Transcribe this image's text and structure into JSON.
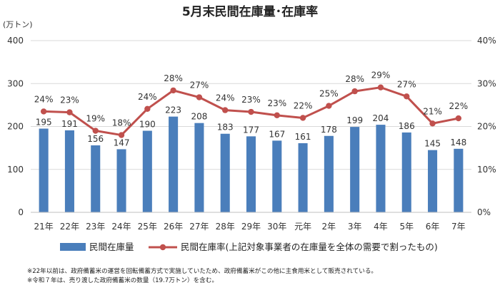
{
  "chart_data": {
    "type": "bar",
    "title": "5月末民間在庫量･在庫率",
    "y_unit_label": "(万トン)",
    "categories": [
      "21年",
      "22年",
      "23年",
      "24年",
      "25年",
      "26年",
      "27年",
      "28年",
      "29年",
      "30年",
      "元年",
      "2年",
      "3年",
      "4年",
      "5年",
      "6年",
      "7年"
    ],
    "series": [
      {
        "name": "民間在庫量",
        "type": "bar",
        "axis": "left",
        "color": "#4a7ebb",
        "values": [
          195,
          191,
          156,
          147,
          190,
          223,
          208,
          183,
          177,
          167,
          161,
          178,
          199,
          204,
          186,
          145,
          148
        ]
      },
      {
        "name": "民間在庫率(上記対象事業者の在庫量を全体の需要で割ったもの)",
        "type": "line",
        "axis": "right",
        "color": "#c0504d",
        "values": [
          24,
          23,
          19,
          18,
          24,
          28,
          27,
          24,
          23,
          23,
          22,
          25,
          28,
          29,
          27,
          21,
          22
        ],
        "value_labels": [
          "24%",
          "23%",
          "19%",
          "18%",
          "24%",
          "28%",
          "27%",
          "24%",
          "23%",
          "23%",
          "22%",
          "25%",
          "28%",
          "29%",
          "27%",
          "21%",
          "22%"
        ],
        "plotted_values": [
          23.5,
          23.3,
          19.0,
          18.0,
          24.1,
          28.4,
          26.8,
          23.8,
          23.4,
          22.6,
          22.0,
          24.8,
          28.2,
          29.1,
          27.0,
          20.7,
          21.9
        ]
      }
    ],
    "ylim_left": [
      0,
      400
    ],
    "yticks_left": [
      "0",
      "100",
      "200",
      "300",
      "400"
    ],
    "ylim_right": [
      0,
      40
    ],
    "yticks_right": [
      "0%",
      "10%",
      "20%",
      "30%",
      "40%"
    ],
    "grid": true,
    "legend_position": "bottom"
  },
  "notes": [
    "※22年以前は、政府備蓄米の運営を回転備蓄方式で実施していたため、政府備蓄米がこの他に主食用米として販売されている。",
    "※令和７年は、売り渡した政府備蓄米の数量（19.7万トン）を含む。"
  ]
}
